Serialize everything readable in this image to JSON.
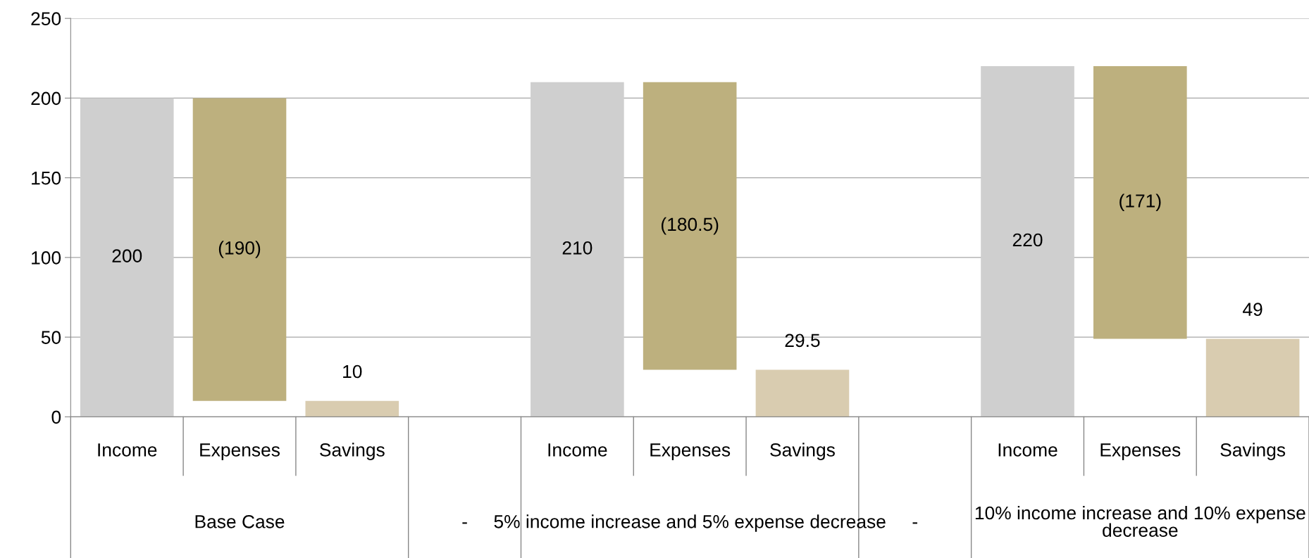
{
  "chart_data": {
    "type": "bar",
    "categories": [
      "Income",
      "Expenses",
      "Savings",
      null,
      "Income",
      "Expenses",
      "Savings",
      null,
      "Income",
      "Expenses",
      "Savings"
    ],
    "values": [
      200,
      190,
      10,
      null,
      210,
      180.5,
      29.5,
      null,
      220,
      171,
      49
    ],
    "base": [
      0,
      10,
      0,
      null,
      0,
      29.5,
      0,
      null,
      0,
      49,
      0
    ],
    "value_labels": [
      "200",
      "(190)",
      "10",
      null,
      "210",
      "(180.5)",
      "29.5",
      null,
      "220",
      "(171)",
      "49"
    ],
    "colors": [
      "#cfcfcf",
      "#bdb07e",
      "#d9ccb0",
      null,
      "#cfcfcf",
      "#bdb07e",
      "#d9ccb0",
      null,
      "#cfcfcf",
      "#bdb07e",
      "#d9ccb0"
    ],
    "annotations": [
      "Base Case",
      "-",
      "5% income increase and 5% expense decrease",
      "-",
      "10% income increase and 10% expense decrease"
    ],
    "ylim": [
      0,
      250
    ],
    "yticks": [
      0,
      50,
      100,
      150,
      200,
      250
    ],
    "grid": "y",
    "legend": false
  }
}
